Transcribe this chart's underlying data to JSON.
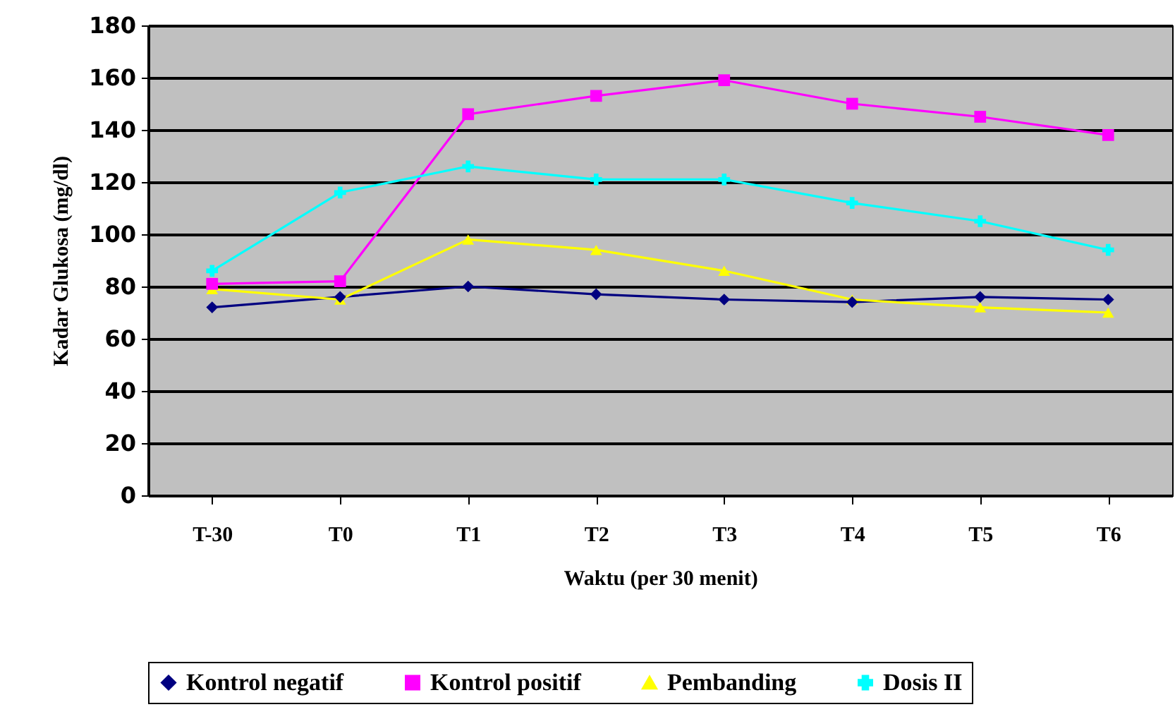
{
  "chart_data": {
    "type": "line",
    "xlabel": "Waktu (per 30 menit)",
    "ylabel": "Kadar Glukosa (mg/dl)",
    "categories": [
      "T-30",
      "T0",
      "T1",
      "T2",
      "T3",
      "T4",
      "T5",
      "T6"
    ],
    "series": [
      {
        "name": "Kontrol negatif",
        "color": "#000080",
        "marker": "diamond",
        "values": [
          72,
          76,
          80,
          77,
          75,
          74,
          76,
          75
        ]
      },
      {
        "name": "Kontrol positif",
        "color": "#ff00ff",
        "marker": "square",
        "values": [
          81,
          82,
          146,
          153,
          159,
          150,
          145,
          138
        ]
      },
      {
        "name": "Pembanding",
        "color": "#ffff00",
        "marker": "triangle",
        "values": [
          79,
          75,
          98,
          94,
          86,
          75,
          72,
          70
        ]
      },
      {
        "name": "Dosis II",
        "color": "#00ffff",
        "marker": "cross",
        "values": [
          86,
          116,
          126,
          121,
          121,
          112,
          105,
          94
        ]
      }
    ],
    "ylim": [
      0,
      180
    ],
    "yticks": [
      0,
      20,
      40,
      60,
      80,
      100,
      120,
      140,
      160,
      180
    ],
    "grid": "y",
    "legend": "bottom",
    "line_style": "solid"
  }
}
